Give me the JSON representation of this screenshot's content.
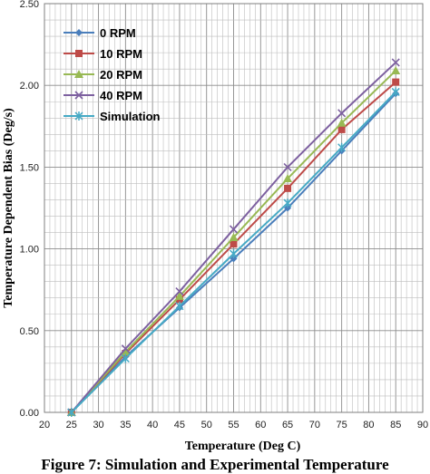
{
  "caption": "Figure 7: Simulation and Experimental Temperature",
  "chart_data": {
    "type": "line",
    "xlabel": "Temperature (Deg C)",
    "ylabel": "Temperature Dependent Bias (Deg/s)",
    "xlim": [
      20,
      90
    ],
    "ylim": [
      0,
      2.5
    ],
    "x_ticks": [
      "20",
      "25",
      "30",
      "35",
      "40",
      "45",
      "50",
      "55",
      "60",
      "65",
      "70",
      "75",
      "80",
      "85",
      "90"
    ],
    "y_ticks": [
      "0.00",
      "0.50",
      "1.00",
      "1.50",
      "2.00",
      "2.50"
    ],
    "grid": true,
    "legend_position": "top-left",
    "x": [
      25,
      35,
      45,
      55,
      65,
      75,
      85
    ],
    "series": [
      {
        "name": "0 RPM",
        "color": "#4a7ebb",
        "marker": "diamond",
        "values": [
          0.0,
          0.34,
          0.64,
          0.94,
          1.25,
          1.6,
          1.95
        ]
      },
      {
        "name": "10 RPM",
        "color": "#be4b48",
        "marker": "square",
        "values": [
          0.0,
          0.36,
          0.69,
          1.03,
          1.37,
          1.73,
          2.02
        ]
      },
      {
        "name": "20 RPM",
        "color": "#98b954",
        "marker": "triangle",
        "values": [
          0.0,
          0.37,
          0.71,
          1.07,
          1.43,
          1.77,
          2.09
        ]
      },
      {
        "name": "40 RPM",
        "color": "#7d60a0",
        "marker": "x",
        "values": [
          0.0,
          0.39,
          0.74,
          1.12,
          1.5,
          1.83,
          2.14
        ]
      },
      {
        "name": "Simulation",
        "color": "#46aac5",
        "marker": "star",
        "values": [
          0.0,
          0.33,
          0.65,
          0.97,
          1.28,
          1.62,
          1.96
        ]
      }
    ]
  }
}
